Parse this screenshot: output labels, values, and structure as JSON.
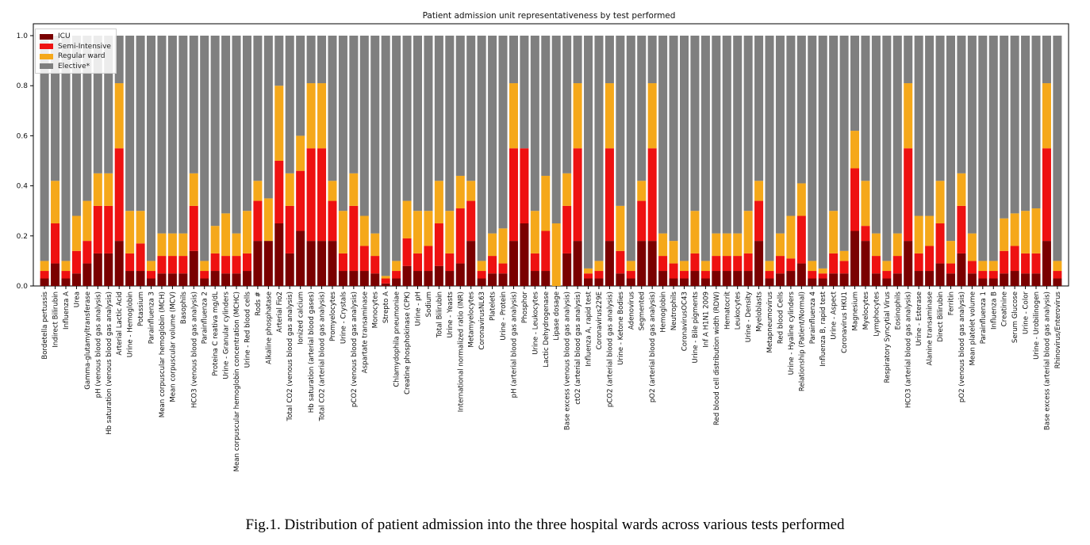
{
  "caption": "Fig.1. Distribution of patient admission into the three hospital wards across various tests performed",
  "chart_data": {
    "type": "bar",
    "stacked": true,
    "title": "Patient admission unit representativeness by test performed",
    "xlabel": "",
    "ylabel": "",
    "ylim": [
      0,
      1.0
    ],
    "yticks": [
      "0.0",
      "0.2",
      "0.4",
      "0.6",
      "0.8",
      "1.0"
    ],
    "legend_position": "top-left",
    "categories": [
      "Bordetella pertussis",
      "Indirect Bilirubin",
      "Influenza A",
      "Urea",
      "Gamma-glutamyltransferase",
      "pH (venous blood gas analysis)",
      "Hb saturation (venous blood gas analysis)",
      "Arterial Lactic Acid",
      "Urine - Hemoglobin",
      "Potassium",
      "Parainfluenza 3",
      "Mean corpuscular hemoglobin (MCH)",
      "Mean corpuscular volume (MCV)",
      "Basophils",
      "HCO3 (venous blood gas analysis)",
      "Parainfluenza 2",
      "Proteina C reativa mg/dL",
      "Urine - Granular cylinders",
      "Mean corpuscular hemoglobin concentration (MCHC)",
      "Urine - Red blood cells",
      "Rods #",
      "Alkaline phosphatase",
      "Arterial Fio2",
      "Total CO2 (venous blood gas analysis)",
      "Ionized calcium",
      "Hb saturation (arterial blood gases)",
      "Total CO2 (arterial blood gas analysis)",
      "Promyelocytes",
      "Urine - Crystals",
      "pCO2 (venous blood gas analysis)",
      "Aspartate transaminase",
      "Monocytes",
      "Strepto A",
      "Chlamydophila pneumoniae",
      "Creatine phosphokinase (CPK)",
      "Urine - pH",
      "Sodium",
      "Total Bilirubin",
      "Urine - Yeasts",
      "International normalized ratio (INR)",
      "Metamyelocytes",
      "CoronavirusNL63",
      "Platelets",
      "Urine - Protein",
      "pH (arterial blood gas analysis)",
      "Phosphor",
      "Urine - Leukocytes",
      "Lactic Dehydrogenase",
      "Lipase dosage",
      "Base excess (venous blood gas analysis)",
      "ctO2 (arterial blood gas analysis)",
      "Influenza A, rapid test",
      "Coronavirus229E",
      "pCO2 (arterial blood gas analysis)",
      "Urine - Ketone Bodies",
      "Adenovirus",
      "Segmented",
      "pO2 (arterial blood gas analysis)",
      "Hemoglobin",
      "Neutrophils",
      "CoronavirusOC43",
      "Urine - Bile pigments",
      "Inf A H1N1 2009",
      "Red blood cell distribution width (RDW)",
      "Hematocrit",
      "Leukocytes",
      "Urine - Density",
      "Myeloblasts",
      "Metapneumovirus",
      "Red blood Cells",
      "Urine - Hyaline cylinders",
      "Relationship (Patient/Normal)",
      "Parainfluenza 4",
      "Influenza B, rapid test",
      "Urine - Aspect",
      "Coronavirus HKU1",
      "Magnesium",
      "Myelocytes",
      "Lymphocytes",
      "Respiratory Syncytial Virus",
      "Eosinophils",
      "HCO3 (arterial blood gas analysis)",
      "Urine - Esterase",
      "Alanine transaminase",
      "Direct Bilirubin",
      "Ferritin",
      "pO2 (venous blood gas analysis)",
      "Mean platelet volume",
      "Parainfluenza 1",
      "Influenza B",
      "Creatinine",
      "Serum Glucose",
      "Urine - Color",
      "Urine - Urobilinogen",
      "Base excess (arterial blood gas analysis)",
      "Rhinovirus/Enterovirus"
    ],
    "series": [
      {
        "name": "ICU",
        "color": "#7a0000",
        "values": [
          0.03,
          0.09,
          0.03,
          0.05,
          0.09,
          0.13,
          0.13,
          0.18,
          0.06,
          0.06,
          0.03,
          0.05,
          0.05,
          0.05,
          0.14,
          0.03,
          0.06,
          0.05,
          0.05,
          0.06,
          0.18,
          0.18,
          0.25,
          0.13,
          0.22,
          0.18,
          0.18,
          0.18,
          0.06,
          0.06,
          0.06,
          0.05,
          0.01,
          0.03,
          0.08,
          0.06,
          0.06,
          0.08,
          0.06,
          0.09,
          0.18,
          0.03,
          0.05,
          0.05,
          0.18,
          0.25,
          0.06,
          0.06,
          0.0,
          0.13,
          0.18,
          0.03,
          0.03,
          0.18,
          0.05,
          0.03,
          0.18,
          0.18,
          0.06,
          0.03,
          0.03,
          0.06,
          0.03,
          0.06,
          0.06,
          0.06,
          0.06,
          0.18,
          0.03,
          0.05,
          0.06,
          0.09,
          0.03,
          0.03,
          0.05,
          0.05,
          0.22,
          0.18,
          0.05,
          0.03,
          0.05,
          0.18,
          0.06,
          0.06,
          0.09,
          0.05,
          0.13,
          0.05,
          0.03,
          0.03,
          0.05,
          0.06,
          0.05,
          0.05,
          0.18,
          0.03
        ]
      },
      {
        "name": "Semi-Intensive",
        "color": "#ee1111",
        "values": [
          0.03,
          0.16,
          0.03,
          0.09,
          0.09,
          0.19,
          0.19,
          0.37,
          0.07,
          0.11,
          0.03,
          0.07,
          0.07,
          0.07,
          0.18,
          0.03,
          0.07,
          0.07,
          0.07,
          0.07,
          0.16,
          0.0,
          0.25,
          0.19,
          0.24,
          0.37,
          0.37,
          0.16,
          0.07,
          0.26,
          0.1,
          0.07,
          0.02,
          0.03,
          0.11,
          0.07,
          0.1,
          0.17,
          0.07,
          0.22,
          0.16,
          0.03,
          0.07,
          0.04,
          0.37,
          0.3,
          0.07,
          0.16,
          0.0,
          0.19,
          0.37,
          0.02,
          0.03,
          0.37,
          0.09,
          0.03,
          0.16,
          0.37,
          0.06,
          0.06,
          0.03,
          0.07,
          0.03,
          0.06,
          0.06,
          0.06,
          0.07,
          0.16,
          0.03,
          0.07,
          0.05,
          0.19,
          0.03,
          0.02,
          0.08,
          0.05,
          0.25,
          0.06,
          0.07,
          0.03,
          0.07,
          0.37,
          0.07,
          0.1,
          0.16,
          0.04,
          0.19,
          0.05,
          0.03,
          0.03,
          0.09,
          0.1,
          0.08,
          0.08,
          0.37,
          0.03
        ]
      },
      {
        "name": "Regular ward",
        "color": "#f5a81a",
        "values": [
          0.04,
          0.17,
          0.04,
          0.14,
          0.16,
          0.13,
          0.13,
          0.26,
          0.17,
          0.13,
          0.04,
          0.09,
          0.09,
          0.09,
          0.13,
          0.04,
          0.11,
          0.17,
          0.09,
          0.17,
          0.08,
          0.17,
          0.3,
          0.13,
          0.14,
          0.26,
          0.26,
          0.08,
          0.17,
          0.13,
          0.12,
          0.09,
          0.01,
          0.04,
          0.15,
          0.17,
          0.14,
          0.17,
          0.17,
          0.13,
          0.08,
          0.04,
          0.09,
          0.14,
          0.26,
          0.0,
          0.17,
          0.22,
          0.25,
          0.13,
          0.26,
          0.02,
          0.04,
          0.26,
          0.18,
          0.04,
          0.08,
          0.26,
          0.09,
          0.09,
          0.04,
          0.17,
          0.04,
          0.09,
          0.09,
          0.09,
          0.17,
          0.08,
          0.04,
          0.09,
          0.17,
          0.13,
          0.04,
          0.02,
          0.17,
          0.04,
          0.15,
          0.18,
          0.09,
          0.04,
          0.09,
          0.26,
          0.15,
          0.12,
          0.17,
          0.09,
          0.13,
          0.11,
          0.04,
          0.04,
          0.13,
          0.13,
          0.17,
          0.18,
          0.26,
          0.04
        ]
      },
      {
        "name": "Elective*",
        "color": "#7f7f7f",
        "values": [
          0.9,
          0.58,
          0.9,
          0.72,
          0.66,
          0.55,
          0.55,
          0.19,
          0.7,
          0.7,
          0.9,
          0.79,
          0.79,
          0.79,
          0.55,
          0.9,
          0.76,
          0.71,
          0.79,
          0.7,
          0.58,
          0.65,
          0.2,
          0.55,
          0.4,
          0.19,
          0.19,
          0.58,
          0.7,
          0.55,
          0.72,
          0.79,
          0.96,
          0.9,
          0.66,
          0.7,
          0.7,
          0.58,
          0.7,
          0.56,
          0.58,
          0.9,
          0.79,
          0.77,
          0.19,
          0.45,
          0.7,
          0.56,
          0.75,
          0.55,
          0.19,
          0.93,
          0.9,
          0.19,
          0.68,
          0.9,
          0.58,
          0.19,
          0.79,
          0.82,
          0.9,
          0.7,
          0.9,
          0.79,
          0.79,
          0.79,
          0.7,
          0.58,
          0.9,
          0.79,
          0.72,
          0.59,
          0.9,
          0.93,
          0.7,
          0.86,
          0.38,
          0.58,
          0.79,
          0.9,
          0.79,
          0.19,
          0.72,
          0.72,
          0.58,
          0.82,
          0.55,
          0.79,
          0.9,
          0.9,
          0.73,
          0.71,
          0.7,
          0.69,
          0.19,
          0.9
        ]
      }
    ]
  }
}
